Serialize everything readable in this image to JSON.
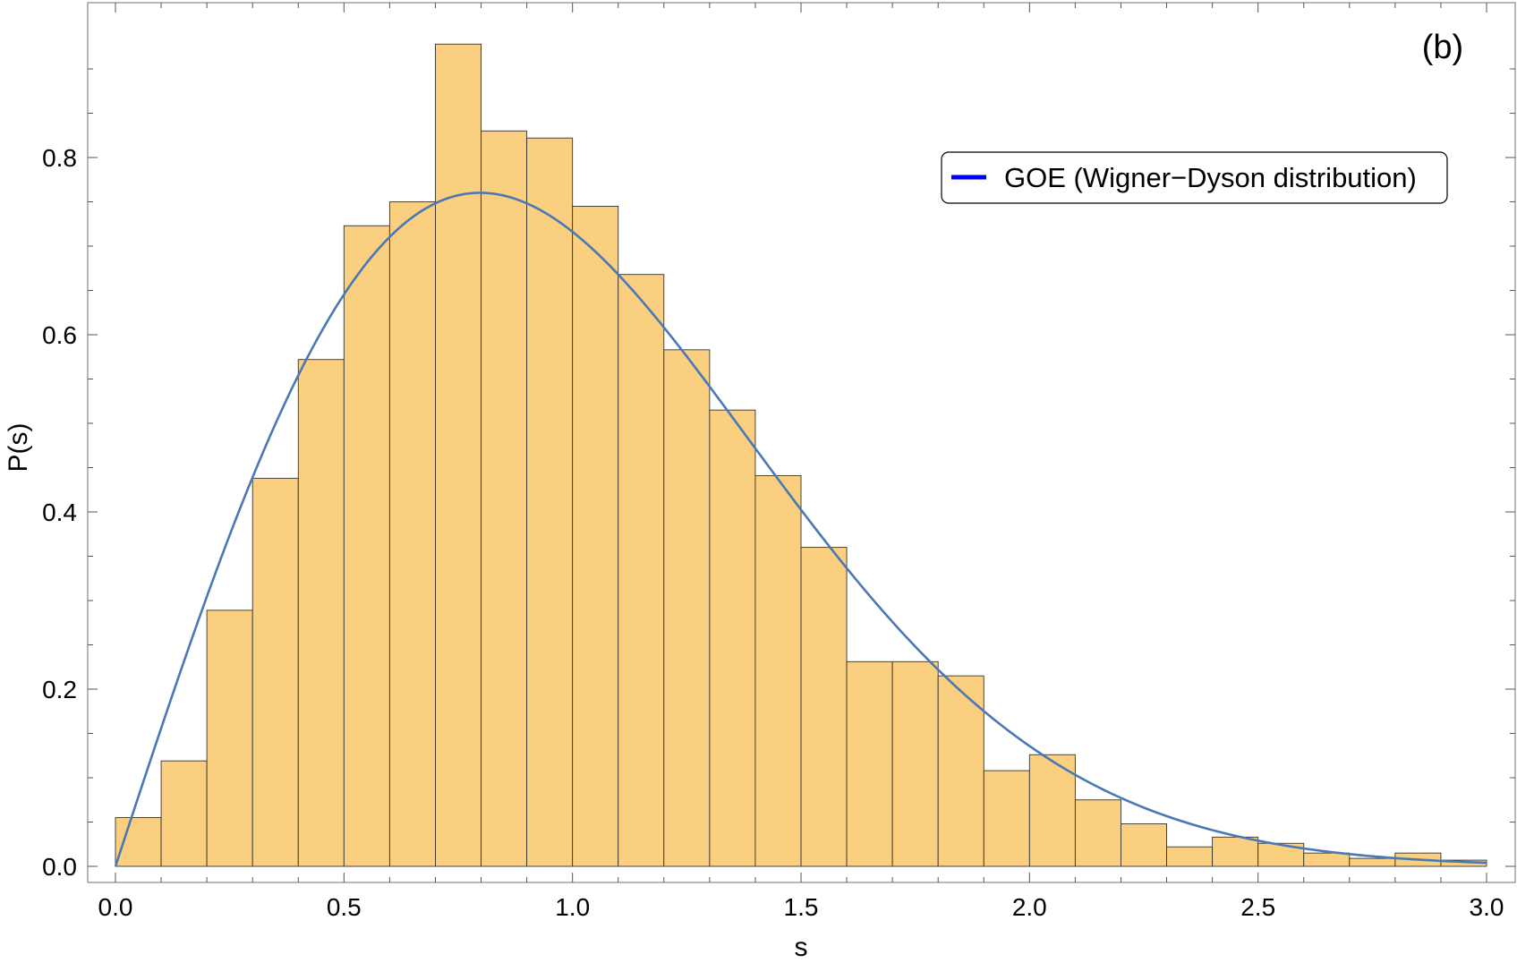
{
  "chart_data": {
    "type": "bar",
    "subtype": "histogram",
    "panel_label": "(b)",
    "xlabel": "s",
    "ylabel": "P(s)",
    "xlim": [
      0.0,
      3.0
    ],
    "ylim": [
      0.0,
      0.93
    ],
    "x_ticks": [
      "0.0",
      "0.5",
      "1.0",
      "1.5",
      "2.0",
      "2.5",
      "3.0"
    ],
    "x_tick_values": [
      0.0,
      0.5,
      1.0,
      1.5,
      2.0,
      2.5,
      3.0
    ],
    "y_ticks": [
      "0.0",
      "0.2",
      "0.4",
      "0.6",
      "0.8"
    ],
    "y_tick_values": [
      0.0,
      0.2,
      0.4,
      0.6,
      0.8
    ],
    "bin_width": 0.1,
    "bin_edges": [
      0.0,
      0.1,
      0.2,
      0.3,
      0.4,
      0.5,
      0.6,
      0.7,
      0.8,
      0.9,
      1.0,
      1.1,
      1.2,
      1.3,
      1.4,
      1.5,
      1.6,
      1.7,
      1.8,
      1.9,
      2.0,
      2.1,
      2.2,
      2.3,
      2.4,
      2.5,
      2.6,
      2.7,
      2.8,
      2.9,
      3.0
    ],
    "values": [
      0.055,
      0.119,
      0.289,
      0.438,
      0.572,
      0.723,
      0.75,
      0.928,
      0.83,
      0.822,
      0.745,
      0.668,
      0.583,
      0.515,
      0.441,
      0.36,
      0.231,
      0.231,
      0.215,
      0.108,
      0.126,
      0.075,
      0.048,
      0.022,
      0.033,
      0.026,
      0.015,
      0.009,
      0.015,
      0.007
    ],
    "curve": {
      "name": "GOE (Wigner−Dyson distribution)",
      "function": "P(s) = (π/2) s exp(−π s² / 4)",
      "color": "#4a78b5",
      "legend_color": "#0000ff"
    },
    "bar_fill": "#fbcf80",
    "bar_stroke": "#333333",
    "grid": false,
    "legend_position": "top-right"
  }
}
